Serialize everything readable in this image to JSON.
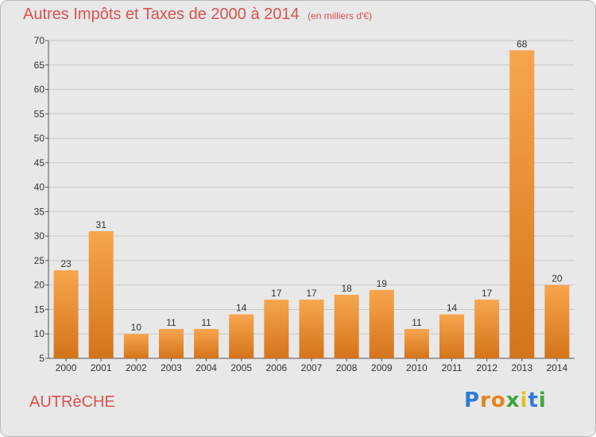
{
  "title": "Autres Impôts et Taxes de 2000 à 2014",
  "unit_label": "(en milliers d'€)",
  "commune": "AUTRèCHE",
  "logo": {
    "text": "Proxiti",
    "colors": [
      "#2e7bd6",
      "#e2841c",
      "#e2841c",
      "#3aa63a",
      "#e0c020",
      "#2e7bd6",
      "#3aa63a"
    ]
  },
  "colors": {
    "title": "#d9534f",
    "bar_light": "#f7a64e",
    "bar_dark": "#d4741a",
    "grid": "#c8c8c8",
    "axis": "#555555",
    "background": "#e8e8e8"
  },
  "chart_data": {
    "type": "bar",
    "title": "Autres Impôts et Taxes de 2000 à 2014",
    "categories": [
      "2000",
      "2001",
      "2002",
      "2003",
      "2004",
      "2005",
      "2006",
      "2007",
      "2008",
      "2009",
      "2010",
      "2011",
      "2012",
      "2013",
      "2014"
    ],
    "values": [
      23,
      31,
      10,
      11,
      11,
      14,
      17,
      17,
      18,
      19,
      11,
      14,
      17,
      68,
      20
    ],
    "xlabel": "",
    "ylabel": "",
    "ylim": [
      5,
      70
    ],
    "yticks": [
      5,
      10,
      15,
      20,
      25,
      30,
      35,
      40,
      45,
      50,
      55,
      60,
      65,
      70
    ],
    "grid": true,
    "data_labels": true
  }
}
